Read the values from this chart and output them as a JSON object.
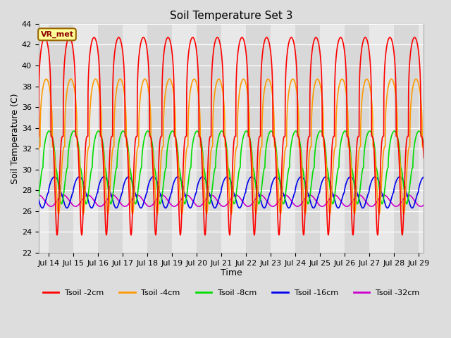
{
  "title": "Soil Temperature Set 3",
  "xlabel": "Time",
  "ylabel": "Soil Temperature (C)",
  "ylim": [
    22,
    44
  ],
  "xlim_days": [
    13.58,
    29.2
  ],
  "x_ticks": [
    14,
    15,
    16,
    17,
    18,
    19,
    20,
    21,
    22,
    23,
    24,
    25,
    26,
    27,
    28,
    29
  ],
  "x_tick_labels": [
    "Jul 14",
    "Jul 15",
    "Jul 16",
    "Jul 17",
    "Jul 18",
    "Jul 19",
    "Jul 20",
    "Jul 21",
    "Jul 22",
    "Jul 23",
    "Jul 24",
    "Jul 25",
    "Jul 26",
    "Jul 27",
    "Jul 28",
    "Jul 29"
  ],
  "yticks": [
    22,
    24,
    26,
    28,
    30,
    32,
    34,
    36,
    38,
    40,
    42,
    44
  ],
  "colors": {
    "Tsoil -2cm": "#ff0000",
    "Tsoil -4cm": "#ff9900",
    "Tsoil -8cm": "#00dd00",
    "Tsoil -16cm": "#0000ee",
    "Tsoil -32cm": "#cc00cc"
  },
  "legend_label": "VR_met",
  "legend_box_facecolor": "#ffff99",
  "legend_box_edgecolor": "#996600",
  "figure_facecolor": "#dddddd",
  "plot_facecolor": "#eeeeee",
  "grid_color": "#ffffff",
  "stripe_colors": [
    "#e8e8e8",
    "#d8d8d8"
  ],
  "params": {
    "Tsoil -2cm": {
      "mean": 33.2,
      "amp": 9.5,
      "phase_lag": 0.0,
      "sharpness": 4.0
    },
    "Tsoil -4cm": {
      "mean": 32.2,
      "amp": 6.5,
      "phase_lag": 0.06,
      "sharpness": 3.0
    },
    "Tsoil -8cm": {
      "mean": 30.2,
      "amp": 3.5,
      "phase_lag": 0.18,
      "sharpness": 2.0
    },
    "Tsoil -16cm": {
      "mean": 27.8,
      "amp": 1.5,
      "phase_lag": 0.4,
      "sharpness": 1.5
    },
    "Tsoil -32cm": {
      "mean": 27.0,
      "amp": 0.55,
      "phase_lag": 0.75,
      "sharpness": 1.0
    }
  },
  "line_order": [
    "Tsoil -32cm",
    "Tsoil -16cm",
    "Tsoil -8cm",
    "Tsoil -4cm",
    "Tsoil -2cm"
  ],
  "legend_order": [
    "Tsoil -2cm",
    "Tsoil -4cm",
    "Tsoil -8cm",
    "Tsoil -16cm",
    "Tsoil -32cm"
  ]
}
